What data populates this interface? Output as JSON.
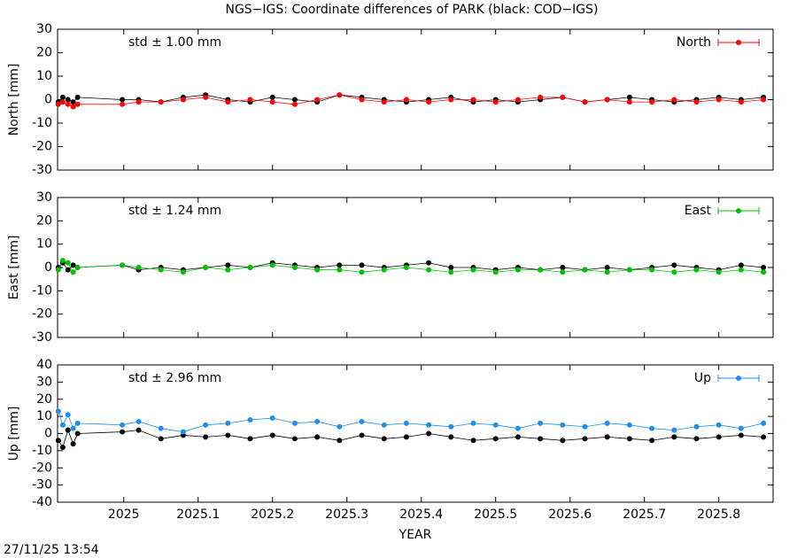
{
  "timestamp": "27/11/25 13:54",
  "chart_data": [
    {
      "type": "scatter",
      "title": "NGS−IGS: Coordinate differences of PARK (black: COD−IGS)",
      "ylabel": "North [mm]",
      "annotation": "std ± 1.00 mm",
      "legend": "top-right",
      "annotation_color": "#ff0000",
      "xlim": [
        2024.911,
        2025.873
      ],
      "xticks": [
        2025,
        2025.1,
        2025.2,
        2025.3,
        2025.4,
        2025.5,
        2025.6,
        2025.7,
        2025.8
      ],
      "ylim": [
        -30,
        30
      ],
      "yticks": [
        -30,
        -20,
        -10,
        0,
        10,
        20,
        30
      ],
      "x": [
        2024.912,
        2024.918,
        2024.925,
        2024.932,
        2024.938,
        2024.998,
        2025.02,
        2025.05,
        2025.08,
        2025.11,
        2025.14,
        2025.17,
        2025.2,
        2025.23,
        2025.26,
        2025.29,
        2025.32,
        2025.35,
        2025.38,
        2025.41,
        2025.44,
        2025.47,
        2025.5,
        2025.53,
        2025.56,
        2025.59,
        2025.62,
        2025.65,
        2025.68,
        2025.71,
        2025.74,
        2025.77,
        2025.8,
        2025.83,
        2025.86
      ],
      "series": [
        {
          "color": "#000000",
          "values": [
            -1,
            1,
            0,
            -1,
            1,
            0,
            0,
            -1,
            1,
            2,
            0,
            -1,
            1,
            0,
            -1,
            2,
            1,
            0,
            -1,
            0,
            1,
            -1,
            0,
            -1,
            0,
            1,
            -1,
            0,
            1,
            0,
            -1,
            0,
            1,
            0,
            1
          ]
        },
        {
          "name": "North",
          "color": "#ff0000",
          "values": [
            -2,
            -1,
            -2,
            -3,
            -2,
            -2,
            -1,
            -1,
            0,
            1,
            -1,
            0,
            -1,
            -2,
            0,
            2,
            0,
            -1,
            0,
            -1,
            0,
            0,
            -1,
            0,
            1,
            1,
            -1,
            0,
            -1,
            -1,
            0,
            -1,
            0,
            -1,
            0
          ]
        }
      ]
    },
    {
      "type": "scatter",
      "ylabel": "East [mm]",
      "annotation": "std ± 1.24 mm",
      "legend": "top-right",
      "annotation_color": "#00c000",
      "xlim": [
        2024.911,
        2025.873
      ],
      "xticks": [
        2025,
        2025.1,
        2025.2,
        2025.3,
        2025.4,
        2025.5,
        2025.6,
        2025.7,
        2025.8
      ],
      "ylim": [
        -30,
        30
      ],
      "yticks": [
        -30,
        -20,
        -10,
        0,
        10,
        20,
        30
      ],
      "x": [
        2024.912,
        2024.918,
        2024.925,
        2024.932,
        2024.938,
        2024.998,
        2025.02,
        2025.05,
        2025.08,
        2025.11,
        2025.14,
        2025.17,
        2025.2,
        2025.23,
        2025.26,
        2025.29,
        2025.32,
        2025.35,
        2025.38,
        2025.41,
        2025.44,
        2025.47,
        2025.5,
        2025.53,
        2025.56,
        2025.59,
        2025.62,
        2025.65,
        2025.68,
        2025.71,
        2025.74,
        2025.77,
        2025.8,
        2025.83,
        2025.86
      ],
      "series": [
        {
          "color": "#000000",
          "values": [
            0,
            2,
            -1,
            1,
            0,
            1,
            -1,
            0,
            -1,
            0,
            1,
            0,
            2,
            1,
            0,
            1,
            1,
            0,
            1,
            2,
            0,
            0,
            -1,
            0,
            -1,
            0,
            -1,
            0,
            -1,
            0,
            1,
            0,
            -1,
            1,
            0
          ]
        },
        {
          "name": "East",
          "color": "#00c000",
          "values": [
            -1,
            3,
            2,
            -2,
            0,
            1,
            0,
            -1,
            -2,
            0,
            -1,
            0,
            1,
            0,
            -1,
            -1,
            -2,
            -1,
            0,
            -1,
            -2,
            -1,
            -2,
            -1,
            -1,
            -2,
            -1,
            -2,
            -1,
            -1,
            -2,
            -1,
            -2,
            -1,
            -2
          ]
        }
      ]
    },
    {
      "type": "scatter",
      "ylabel": "Up [mm]",
      "xlabel": "YEAR",
      "annotation": "std ± 2.96 mm",
      "legend": "top-right",
      "annotation_color": "#1e8ff0",
      "xlim": [
        2024.911,
        2025.873
      ],
      "xticks": [
        2025,
        2025.1,
        2025.2,
        2025.3,
        2025.4,
        2025.5,
        2025.6,
        2025.7,
        2025.8
      ],
      "ylim": [
        -40,
        40
      ],
      "yticks": [
        -40,
        -30,
        -20,
        -10,
        0,
        10,
        20,
        30,
        40
      ],
      "x": [
        2024.912,
        2024.918,
        2024.925,
        2024.932,
        2024.938,
        2024.998,
        2025.02,
        2025.05,
        2025.08,
        2025.11,
        2025.14,
        2025.17,
        2025.2,
        2025.23,
        2025.26,
        2025.29,
        2025.32,
        2025.35,
        2025.38,
        2025.41,
        2025.44,
        2025.47,
        2025.5,
        2025.53,
        2025.56,
        2025.59,
        2025.62,
        2025.65,
        2025.68,
        2025.71,
        2025.74,
        2025.77,
        2025.8,
        2025.83,
        2025.86
      ],
      "series": [
        {
          "color": "#000000",
          "values": [
            -4,
            -8,
            2,
            -6,
            0,
            1,
            2,
            -3,
            -1,
            -2,
            -1,
            -3,
            -1,
            -3,
            -2,
            -4,
            -1,
            -3,
            -2,
            0,
            -2,
            -4,
            -3,
            -2,
            -3,
            -4,
            -3,
            -2,
            -3,
            -4,
            -2,
            -3,
            -2,
            -1,
            -2
          ]
        },
        {
          "name": "Up",
          "color": "#1e8ff0",
          "values": [
            13,
            5,
            11,
            3,
            6,
            5,
            7,
            3,
            1,
            5,
            6,
            8,
            9,
            6,
            7,
            4,
            7,
            5,
            6,
            5,
            4,
            6,
            5,
            3,
            6,
            5,
            4,
            6,
            5,
            3,
            2,
            4,
            5,
            3,
            6
          ]
        }
      ]
    }
  ]
}
